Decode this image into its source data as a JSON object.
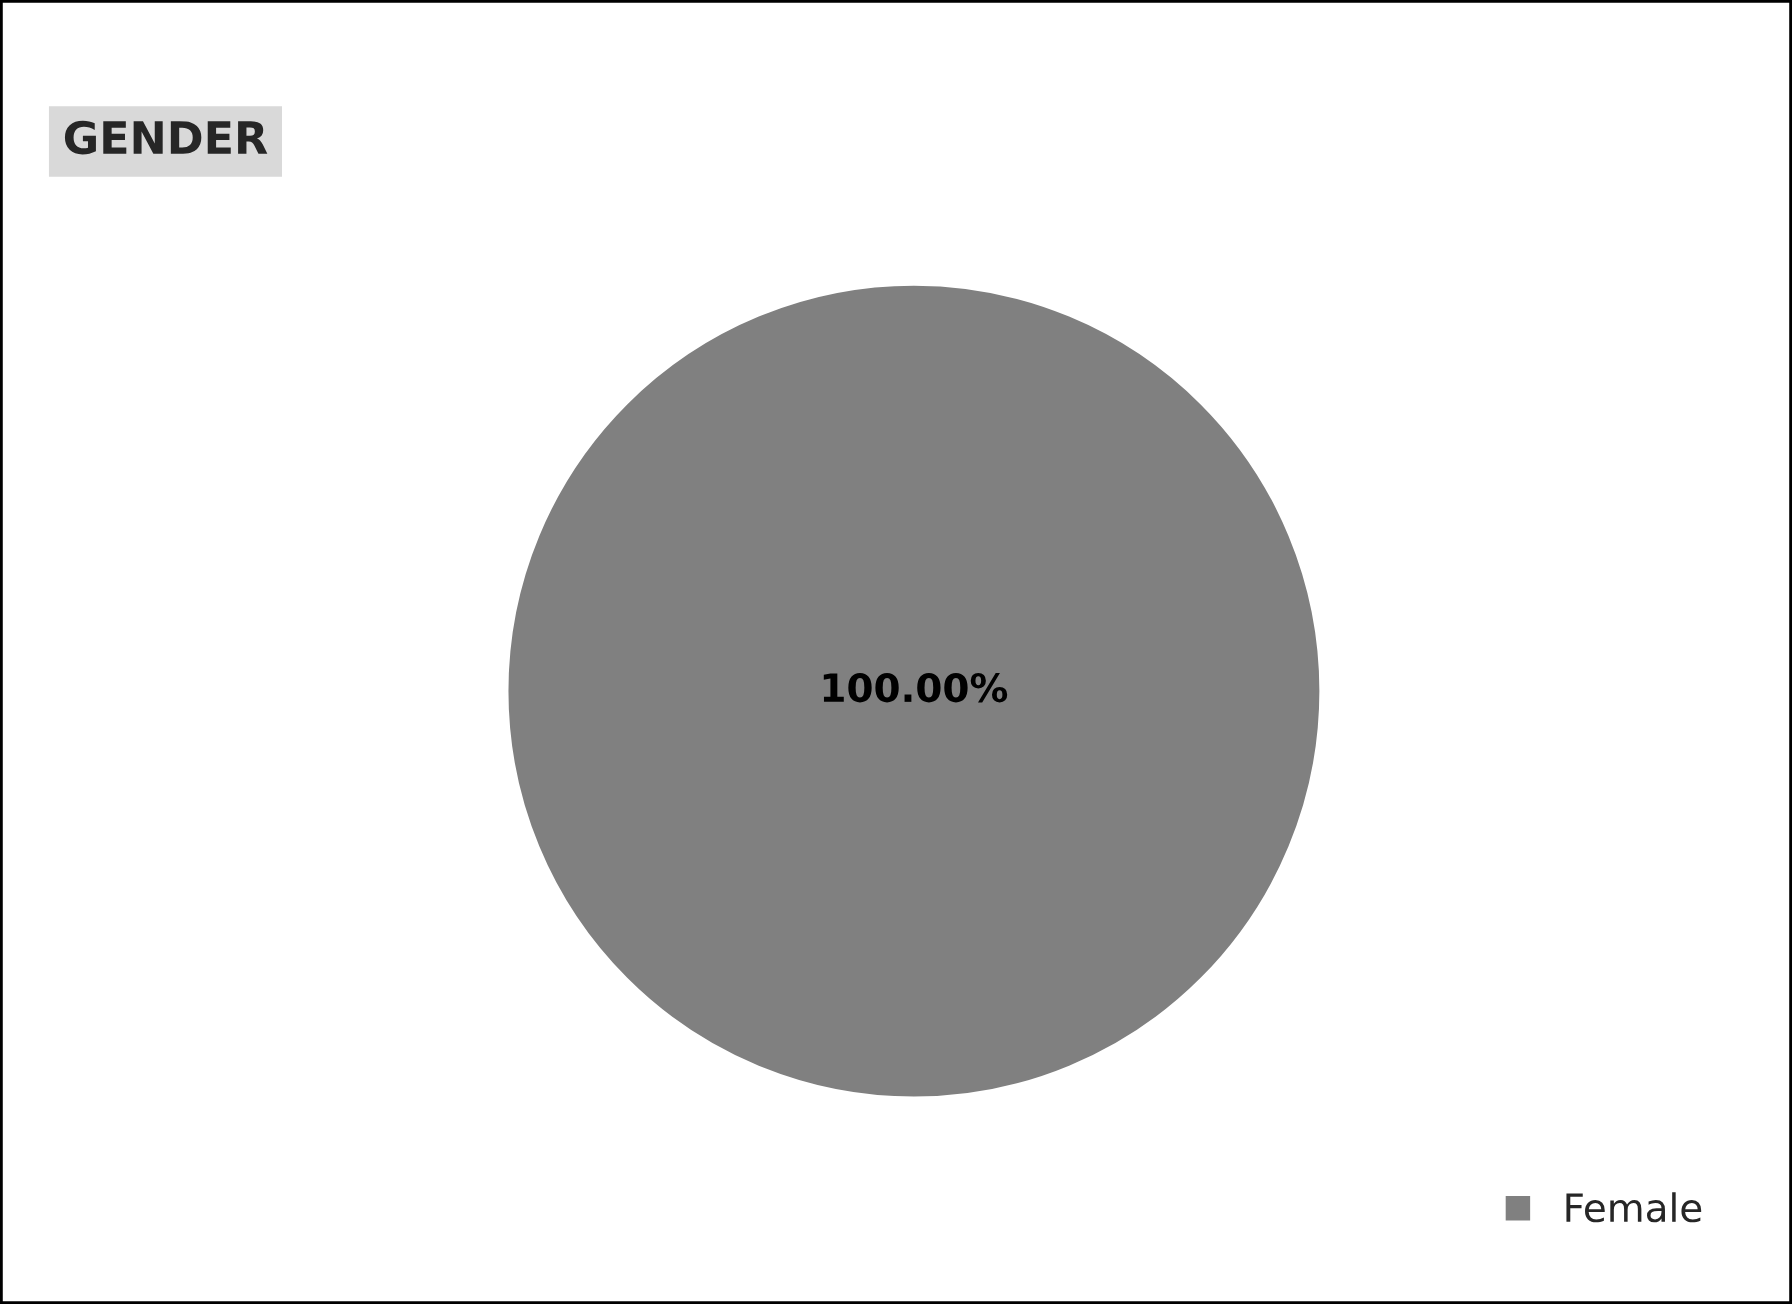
{
  "chart_data": {
    "type": "pie",
    "title": "GENDER",
    "categories": [
      "Female"
    ],
    "values": [
      100
    ],
    "colors": [
      "#808080"
    ],
    "value_labels": [
      "100.00%"
    ],
    "legend": "bottom right"
  }
}
